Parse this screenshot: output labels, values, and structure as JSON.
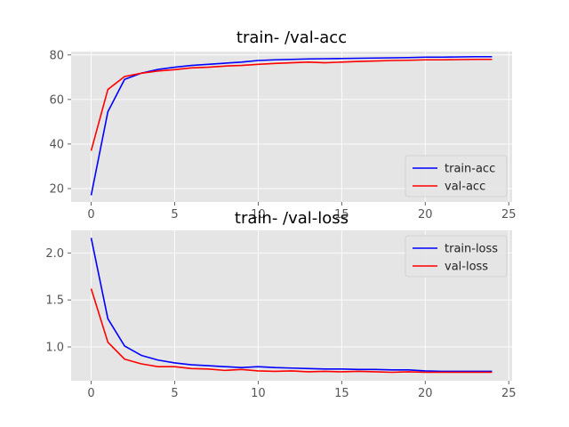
{
  "chart_data": [
    {
      "type": "line",
      "title": "train- /val-acc",
      "xlabel": "",
      "ylabel": "",
      "xlim": [
        -1.2,
        25.2
      ],
      "ylim": [
        14,
        81.5
      ],
      "xticks": [
        0,
        5,
        10,
        15,
        20,
        25
      ],
      "yticks": [
        20,
        40,
        60,
        80
      ],
      "grid": true,
      "legend_position": "lower right",
      "x": [
        0,
        1,
        2,
        3,
        4,
        5,
        6,
        7,
        8,
        9,
        10,
        11,
        12,
        13,
        14,
        15,
        16,
        17,
        18,
        19,
        20,
        21,
        22,
        23,
        24
      ],
      "series": [
        {
          "name": "train-acc",
          "color": "#0000ff",
          "values": [
            17.0,
            54.5,
            69.0,
            71.8,
            73.5,
            74.5,
            75.3,
            75.8,
            76.3,
            76.8,
            77.5,
            77.8,
            78.0,
            78.2,
            78.3,
            78.4,
            78.5,
            78.6,
            78.7,
            78.8,
            79.0,
            79.0,
            79.1,
            79.2,
            79.2
          ]
        },
        {
          "name": "val-acc",
          "color": "#ff0000",
          "values": [
            37.0,
            64.5,
            70.3,
            71.8,
            72.8,
            73.4,
            74.2,
            74.5,
            75.0,
            75.3,
            75.8,
            76.2,
            76.5,
            76.8,
            76.5,
            76.8,
            77.1,
            77.3,
            77.5,
            77.6,
            77.8,
            77.8,
            77.9,
            78.0,
            78.0
          ]
        }
      ]
    },
    {
      "type": "line",
      "title": "train- /val-loss",
      "xlabel": "",
      "ylabel": "",
      "xlim": [
        -1.2,
        25.2
      ],
      "ylim": [
        0.64,
        2.24
      ],
      "xticks": [
        0,
        5,
        10,
        15,
        20,
        25
      ],
      "yticks": [
        1.0,
        1.5,
        2.0
      ],
      "grid": true,
      "legend_position": "upper right",
      "x": [
        0,
        1,
        2,
        3,
        4,
        5,
        6,
        7,
        8,
        9,
        10,
        11,
        12,
        13,
        14,
        15,
        16,
        17,
        18,
        19,
        20,
        21,
        22,
        23,
        24
      ],
      "series": [
        {
          "name": "train-loss",
          "color": "#0000ff",
          "values": [
            2.16,
            1.3,
            1.01,
            0.91,
            0.86,
            0.83,
            0.81,
            0.8,
            0.79,
            0.78,
            0.79,
            0.78,
            0.775,
            0.77,
            0.765,
            0.765,
            0.76,
            0.76,
            0.755,
            0.755,
            0.745,
            0.74,
            0.74,
            0.74,
            0.74
          ]
        },
        {
          "name": "val-loss",
          "color": "#ff0000",
          "values": [
            1.62,
            1.05,
            0.87,
            0.82,
            0.79,
            0.79,
            0.77,
            0.765,
            0.75,
            0.76,
            0.745,
            0.74,
            0.745,
            0.735,
            0.74,
            0.735,
            0.74,
            0.735,
            0.73,
            0.735,
            0.73,
            0.73,
            0.73,
            0.73,
            0.73
          ]
        }
      ]
    }
  ]
}
